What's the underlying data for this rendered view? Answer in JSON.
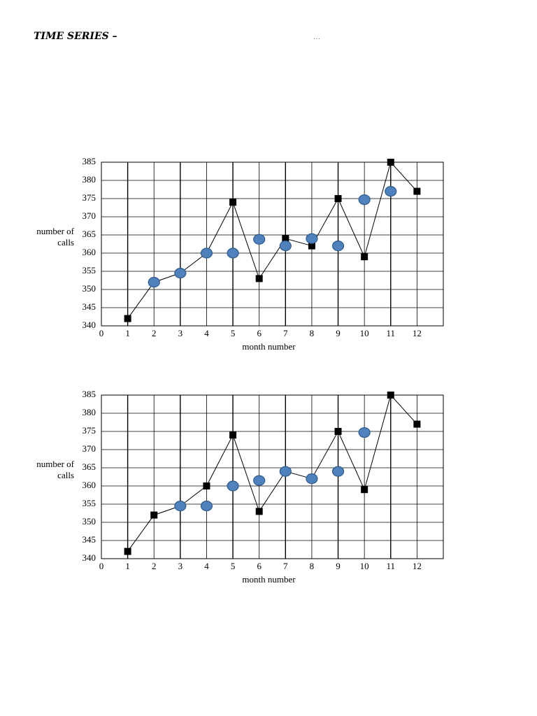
{
  "header": {
    "title": "TIME SERIES –",
    "note": "…"
  },
  "chart_data": [
    {
      "type": "line",
      "xlabel": "month number",
      "ylabel": "number of calls",
      "x": [
        1,
        2,
        3,
        4,
        5,
        6,
        7,
        8,
        9,
        10,
        11,
        12
      ],
      "series": [
        {
          "color": "#000000",
          "marker": "square",
          "line": true,
          "values": [
            342,
            352,
            354.5,
            360,
            374,
            353,
            364,
            362,
            375,
            359,
            385,
            377
          ]
        },
        {
          "color": "#4f81bd",
          "marker": "circle",
          "line": false,
          "values": [
            null,
            352,
            354.5,
            360,
            360,
            363.8,
            362,
            364,
            362,
            374.7,
            377,
            null
          ]
        }
      ],
      "xlim": [
        0,
        13
      ],
      "xticks": [
        0,
        1,
        2,
        3,
        4,
        5,
        6,
        7,
        8,
        9,
        10,
        11,
        12
      ],
      "ylim": [
        340,
        385
      ],
      "yticks": [
        340,
        345,
        350,
        355,
        360,
        365,
        370,
        375,
        380,
        385
      ],
      "grid": true
    },
    {
      "type": "line",
      "xlabel": "month number",
      "ylabel": "number of calls",
      "x": [
        1,
        2,
        3,
        4,
        5,
        6,
        7,
        8,
        9,
        10,
        11,
        12
      ],
      "series": [
        {
          "color": "#000000",
          "marker": "square",
          "line": true,
          "values": [
            342,
            352,
            354.5,
            360,
            374,
            353,
            364,
            362,
            375,
            359,
            385,
            377
          ]
        },
        {
          "color": "#4f81bd",
          "marker": "circle",
          "line": false,
          "values": [
            null,
            null,
            354.5,
            354.5,
            360,
            361.5,
            364,
            362,
            364,
            374.7,
            null,
            null
          ]
        }
      ],
      "xlim": [
        0,
        13
      ],
      "xticks": [
        0,
        1,
        2,
        3,
        4,
        5,
        6,
        7,
        8,
        9,
        10,
        11,
        12
      ],
      "ylim": [
        340,
        385
      ],
      "yticks": [
        340,
        345,
        350,
        355,
        360,
        365,
        370,
        375,
        380,
        385
      ],
      "grid": true
    }
  ]
}
